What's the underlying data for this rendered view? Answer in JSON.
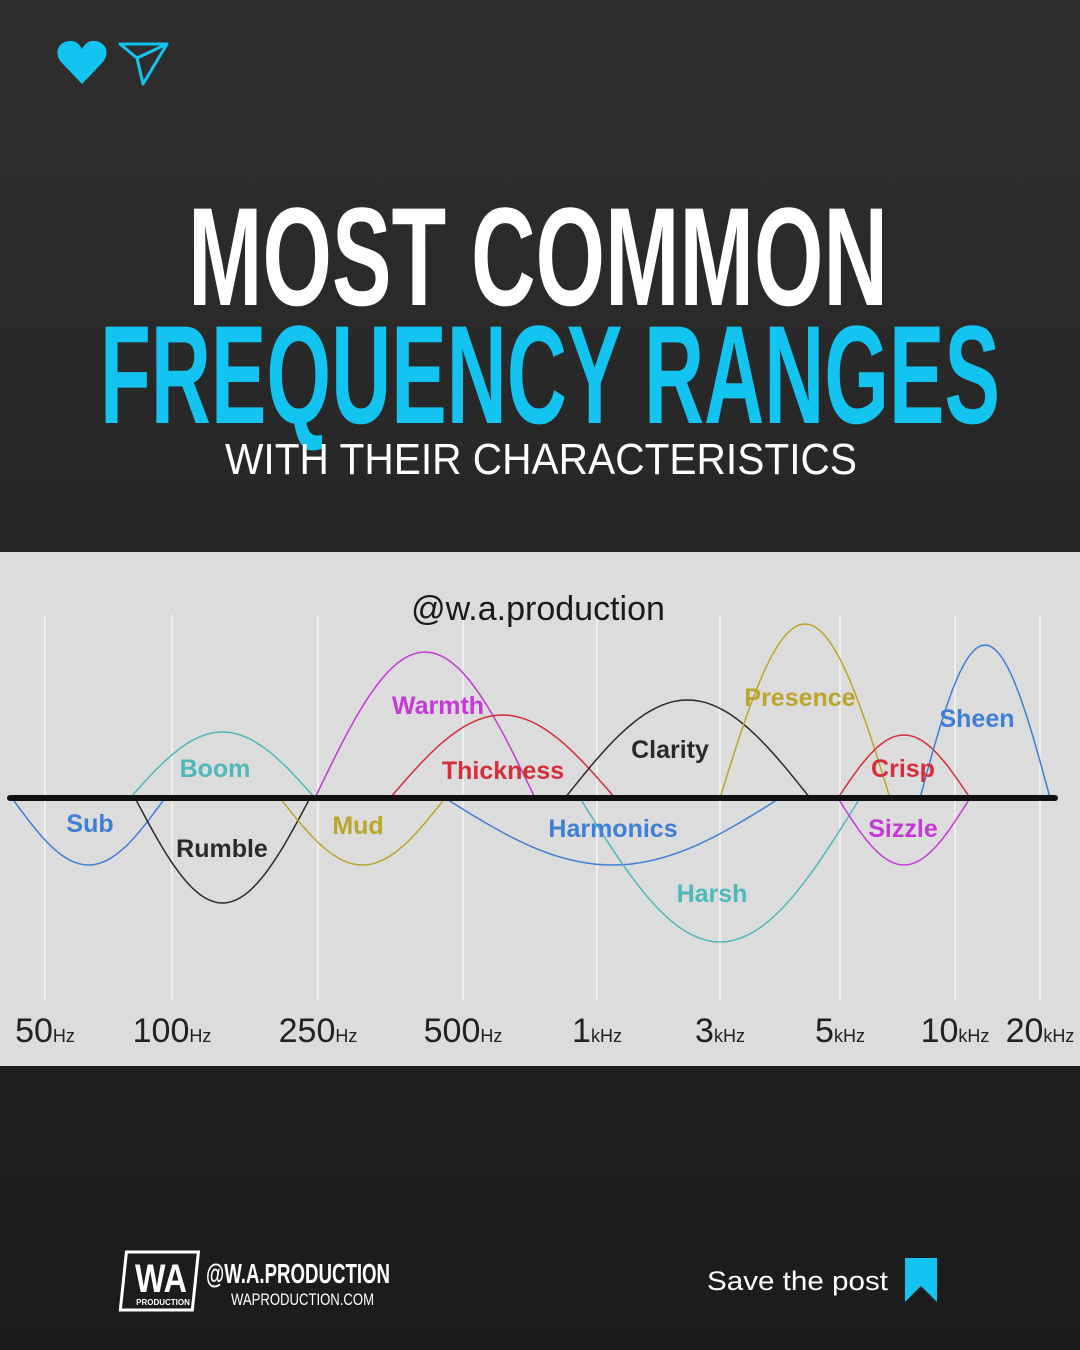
{
  "header": {
    "title_line1": "MOST COMMON",
    "title_line2": "FREQUENCY RANGES",
    "subtitle": "WITH THEIR CHARACTERISTICS"
  },
  "diagram": {
    "watermark": "@w.a.production",
    "bands": [
      {
        "label": "Sub",
        "color": "#3f7fd6"
      },
      {
        "label": "Boom",
        "color": "#4fb8b8"
      },
      {
        "label": "Rumble",
        "color": "#2a2a2a"
      },
      {
        "label": "Mud",
        "color": "#bba52a"
      },
      {
        "label": "Warmth",
        "color": "#c43ad6"
      },
      {
        "label": "Thickness",
        "color": "#d42f3a"
      },
      {
        "label": "Harmonics",
        "color": "#3f7fd6"
      },
      {
        "label": "Clarity",
        "color": "#2a2a2a"
      },
      {
        "label": "Harsh",
        "color": "#4fb8b8"
      },
      {
        "label": "Presence",
        "color": "#bba52a"
      },
      {
        "label": "Crisp",
        "color": "#d42f3a"
      },
      {
        "label": "Sizzle",
        "color": "#c43ad6"
      },
      {
        "label": "Sheen",
        "color": "#3f7fd6"
      }
    ],
    "axis_labels": [
      {
        "number": "50",
        "unit": "Hz"
      },
      {
        "number": "100",
        "unit": "Hz"
      },
      {
        "number": "250",
        "unit": "Hz"
      },
      {
        "number": "500",
        "unit": "Hz"
      },
      {
        "number": "1",
        "unit": "kHz"
      },
      {
        "number": "3",
        "unit": "kHz"
      },
      {
        "number": "5",
        "unit": "kHz"
      },
      {
        "number": "10",
        "unit": "kHz"
      },
      {
        "number": "20",
        "unit": "kHz"
      }
    ]
  },
  "footer": {
    "logo": "WA",
    "logo_sub": "PRODUCTION",
    "handle": "@W.A.PRODUCTION",
    "website": "WAPRODUCTION.COM",
    "save": "Save the post"
  }
}
